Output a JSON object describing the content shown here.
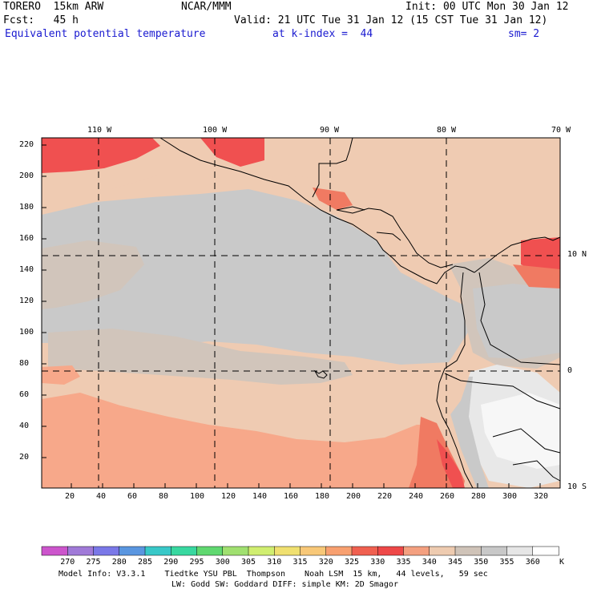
{
  "header": {
    "model": "TORERO  15km ARW",
    "center": "NCAR/MMM",
    "init": "Init: 00 UTC Mon 30 Jan 12",
    "fcst": "Fcst:   45 h",
    "valid": "Valid: 21 UTC Tue 31 Jan 12 (15 CST Tue 31 Jan 12)",
    "field": "Equivalent potential temperature",
    "level": "at k-index =  44",
    "smooth": "sm= 2"
  },
  "axes": {
    "top_lon": [
      "110 W",
      "100 W",
      "90 W",
      "80 W",
      "70 W"
    ],
    "right_lat": [
      "10 N",
      "0",
      "10 S"
    ],
    "left_y": [
      "220",
      "200",
      "180",
      "160",
      "140",
      "120",
      "100",
      "80",
      "60",
      "40",
      "20"
    ],
    "bottom_x": [
      "20",
      "40",
      "60",
      "80",
      "100",
      "120",
      "140",
      "160",
      "180",
      "200",
      "220",
      "240",
      "260",
      "280",
      "300",
      "320"
    ]
  },
  "colorbar": {
    "unit": "K",
    "labels": [
      "270",
      "275",
      "280",
      "285",
      "290",
      "295",
      "300",
      "305",
      "310",
      "315",
      "320",
      "325",
      "330",
      "335",
      "340",
      "345",
      "350",
      "355",
      "360"
    ],
    "colors": [
      "#cc55cc",
      "#a07ad8",
      "#7a78e8",
      "#5a96e0",
      "#38c8c8",
      "#38d8a0",
      "#60d870",
      "#a0e070",
      "#d0ee70",
      "#f0e070",
      "#f8c878",
      "#f8a070",
      "#f06050",
      "#ee4848",
      "#f4a080",
      "#eecbb0",
      "#cfc3b8",
      "#c8c8c8",
      "#e6e6e6",
      "#ffffff"
    ]
  },
  "footer": {
    "line1": "Model Info: V3.3.1    Tiedtke YSU PBL  Thompson    Noah LSM  15 km,   44 levels,   59 sec",
    "line2": "LW: Godd SW: Goddard DIFF: simple KM: 2D Smagor"
  },
  "map_colors": {
    "c330": "#f05050",
    "c335": "#f07a62",
    "c340": "#f7a88a",
    "c345": "#efcbb2",
    "c350": "#d1c5bb",
    "c355": "#c9c9c9",
    "c360": "#e8e8e8",
    "c365": "#f7f7f7"
  }
}
